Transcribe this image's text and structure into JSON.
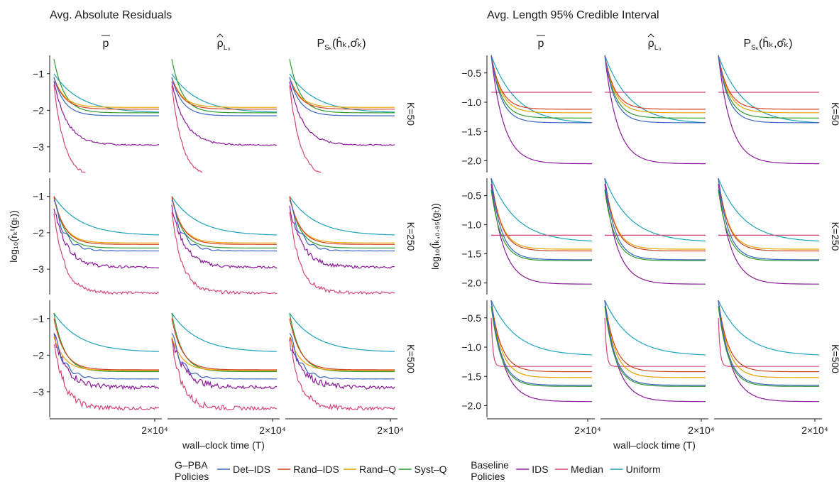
{
  "chart_data": {
    "type": "line",
    "panels": [
      {
        "title": "Avg. Absolute Residuals",
        "ylim": [
          -3.7,
          -0.5
        ],
        "yticks": [
          -1,
          -2,
          -3
        ],
        "ytick_labels": [
          "−1",
          "−2",
          "−3"
        ],
        "rows": [
          {
            "label": "K=50",
            "series": {
              "Det-IDS": [
                -1.1,
                -2.15,
                -2.15
              ],
              "Rand-IDS": [
                -1.1,
                -1.97,
                -1.97
              ],
              "Rand-Q": [
                -1.1,
                -1.92,
                -1.92
              ],
              "Syst-Q": [
                -0.6,
                -2.07,
                -2.07
              ],
              "IDS": [
                -1.2,
                -2.95,
                -2.95
              ],
              "Median": [
                -1.3,
                -3.85,
                -3.85
              ],
              "Uniform": [
                -1.0,
                -2.07,
                -2.07
              ]
            }
          },
          {
            "label": "K=250",
            "series": {
              "Det-IDS": [
                -1.1,
                -2.5,
                -2.5
              ],
              "Rand-IDS": [
                -1.0,
                -2.32,
                -2.32
              ],
              "Rand-Q": [
                -1.05,
                -2.28,
                -2.28
              ],
              "Syst-Q": [
                -1.0,
                -2.42,
                -2.42
              ],
              "IDS": [
                -1.3,
                -2.95,
                -2.95
              ],
              "Median": [
                -1.4,
                -3.65,
                -3.65
              ],
              "Uniform": [
                -1.0,
                -2.08,
                -2.08
              ]
            }
          },
          {
            "label": "K=500",
            "series": {
              "Det-IDS": [
                -1.4,
                -2.65,
                -2.65
              ],
              "Rand-IDS": [
                -1.0,
                -2.4,
                -2.4
              ],
              "Rand-Q": [
                -1.5,
                -2.42,
                -2.42
              ],
              "Syst-Q": [
                -0.85,
                -2.45,
                -2.45
              ],
              "IDS": [
                -1.5,
                -2.88,
                -2.88
              ],
              "Median": [
                -1.6,
                -3.45,
                -3.45
              ],
              "Uniform": [
                -0.85,
                -1.92,
                -1.92
              ]
            }
          }
        ]
      },
      {
        "title": "Avg. Length 95% Credible Interval",
        "ylim": [
          -2.2,
          -0.2
        ],
        "yticks": [
          -0.5,
          -1.0,
          -1.5,
          -2.0
        ],
        "ytick_labels": [
          "−0.5",
          "−1.0",
          "−1.5",
          "−2.0"
        ],
        "rows": [
          {
            "label": "K=50",
            "series": {
              "Det-IDS": [
                -0.2,
                -1.35,
                -1.35
              ],
              "Rand-IDS": [
                -0.2,
                -1.12,
                -1.12
              ],
              "Rand-Q": [
                -0.2,
                -1.18,
                -1.18
              ],
              "Syst-Q": [
                -0.2,
                -1.27,
                -1.27
              ],
              "IDS": [
                -0.2,
                -2.05,
                -2.05
              ],
              "Median": [
                -0.83,
                -0.83,
                -0.83
              ],
              "Uniform": [
                -0.2,
                -1.37,
                -1.37
              ]
            }
          },
          {
            "label": "K=250",
            "series": {
              "Det-IDS": [
                -0.2,
                -1.6,
                -1.6
              ],
              "Rand-IDS": [
                -0.2,
                -1.45,
                -1.45
              ],
              "Rand-Q": [
                -0.2,
                -1.42,
                -1.42
              ],
              "Syst-Q": [
                -0.4,
                -1.62,
                -1.62
              ],
              "IDS": [
                -0.3,
                -2.02,
                -2.02
              ],
              "Median": [
                -1.18,
                -1.18,
                -1.18
              ],
              "Uniform": [
                -0.2,
                -1.3,
                -1.3
              ]
            }
          },
          {
            "label": "K=500",
            "series": {
              "Det-IDS": [
                -0.2,
                -1.65,
                -1.65
              ],
              "Rand-IDS": [
                -0.2,
                -1.42,
                -1.42
              ],
              "Rand-Q": [
                -0.2,
                -1.52,
                -1.52
              ],
              "Syst-Q": [
                -0.3,
                -1.67,
                -1.67
              ],
              "IDS": [
                -0.2,
                -1.93,
                -1.93
              ],
              "Median": [
                -0.5,
                -1.33,
                -1.33
              ],
              "Uniform": [
                -0.2,
                -1.15,
                -1.15
              ]
            }
          }
        ]
      }
    ],
    "columns": [
      {
        "label": "p",
        "decoration": "bar"
      },
      {
        "label": "ρ",
        "decoration": "hat",
        "subscript": "L₀"
      },
      {
        "label": "P",
        "subscript": "Sₖ",
        "suffix": "(ĥₖ,σ̂ₖ)"
      }
    ],
    "x_tick_label": "2×10⁴",
    "xlabel": "wall–clock time (T)",
    "ylabels": [
      "log₁₀(r̂ₖᵗ(gₜ))",
      "log₁₀(l̂ₖ,₀.₉₅(gₜ))"
    ],
    "legend": {
      "groups": [
        {
          "title": [
            "G–PBA",
            "Policies"
          ],
          "entries": [
            {
              "name": "Det–IDS",
              "color": "#3a63c4"
            },
            {
              "name": "Rand–IDS",
              "color": "#cf4320"
            },
            {
              "name": "Rand–Q",
              "color": "#e8a300"
            },
            {
              "name": "Syst–Q",
              "color": "#2f9a2f"
            }
          ]
        },
        {
          "title": [
            "Baseline",
            "Policies"
          ],
          "entries": [
            {
              "name": "IDS",
              "color": "#8c1a9a"
            },
            {
              "name": "Median",
              "color": "#d6477a"
            },
            {
              "name": "Uniform",
              "color": "#1fa2bf"
            }
          ]
        }
      ],
      "placement": "bottom"
    }
  }
}
